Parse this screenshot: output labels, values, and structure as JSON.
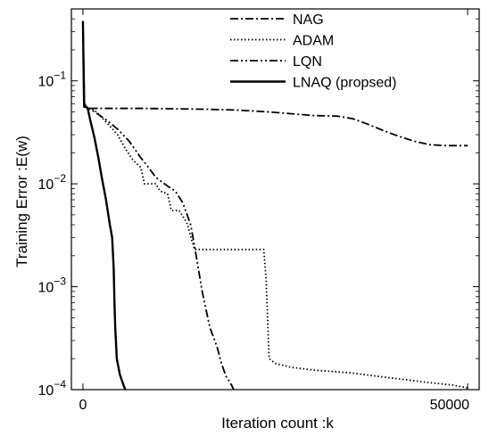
{
  "chart_data": {
    "type": "line",
    "title": "",
    "xlabel": "Iteration count :k",
    "ylabel": "Training Error :E(w)",
    "xlim": [
      -1500,
      51500
    ],
    "ylim": [
      0.0001,
      0.5
    ],
    "y_scale": "log",
    "x_ticks": [
      0,
      50000
    ],
    "x_tick_labels": [
      "0",
      "50000"
    ],
    "y_ticks": [
      0.1,
      0.01,
      0.001,
      0.0001
    ],
    "grid": false,
    "legend_position": "top-right",
    "series": [
      {
        "name": "NAG",
        "dash": "dash-dot",
        "points": [
          [
            0,
            0.38
          ],
          [
            200,
            0.056
          ],
          [
            1000,
            0.054
          ],
          [
            3000,
            0.054
          ],
          [
            8000,
            0.054
          ],
          [
            12000,
            0.0535
          ],
          [
            16000,
            0.053
          ],
          [
            20000,
            0.052
          ],
          [
            24000,
            0.05
          ],
          [
            27000,
            0.048
          ],
          [
            30000,
            0.046
          ],
          [
            33000,
            0.0455
          ],
          [
            35000,
            0.043
          ],
          [
            37000,
            0.038
          ],
          [
            39000,
            0.033
          ],
          [
            41000,
            0.029
          ],
          [
            43000,
            0.026
          ],
          [
            45000,
            0.024
          ],
          [
            47000,
            0.0235
          ],
          [
            50000,
            0.0235
          ]
        ]
      },
      {
        "name": "ADAM",
        "dash": "dotted",
        "points": [
          [
            0,
            0.38
          ],
          [
            200,
            0.06
          ],
          [
            500,
            0.055
          ],
          [
            1500,
            0.052
          ],
          [
            3000,
            0.04
          ],
          [
            4500,
            0.03
          ],
          [
            5500,
            0.022
          ],
          [
            6500,
            0.017
          ],
          [
            7500,
            0.0145
          ],
          [
            8000,
            0.01
          ],
          [
            9500,
            0.01
          ],
          [
            10000,
            0.0085
          ],
          [
            11000,
            0.008
          ],
          [
            11500,
            0.0055
          ],
          [
            12500,
            0.0055
          ],
          [
            13500,
            0.0042
          ],
          [
            14500,
            0.0023
          ],
          [
            19000,
            0.0023
          ],
          [
            23500,
            0.0023
          ],
          [
            23800,
            0.0012
          ],
          [
            24000,
            0.0005
          ],
          [
            24200,
            0.0002
          ],
          [
            25000,
            0.00018
          ],
          [
            27000,
            0.000165
          ],
          [
            30000,
            0.000155
          ],
          [
            35000,
            0.000145
          ],
          [
            40000,
            0.00013
          ],
          [
            45000,
            0.000117
          ],
          [
            48000,
            0.000111
          ],
          [
            50000,
            0.000104
          ]
        ]
      },
      {
        "name": "LQN",
        "dash": "dash-dot-dot",
        "points": [
          [
            0,
            0.38
          ],
          [
            200,
            0.06
          ],
          [
            500,
            0.055
          ],
          [
            1500,
            0.05
          ],
          [
            3000,
            0.042
          ],
          [
            4500,
            0.034
          ],
          [
            6000,
            0.026
          ],
          [
            7500,
            0.018
          ],
          [
            8500,
            0.0145
          ],
          [
            9500,
            0.0115
          ],
          [
            11000,
            0.0095
          ],
          [
            12000,
            0.0085
          ],
          [
            13000,
            0.0065
          ],
          [
            14000,
            0.004
          ],
          [
            14500,
            0.0025
          ],
          [
            15000,
            0.0015
          ],
          [
            15500,
            0.0009
          ],
          [
            16000,
            0.0006
          ],
          [
            16500,
            0.0004
          ],
          [
            17000,
            0.00032
          ],
          [
            17500,
            0.00025
          ],
          [
            18000,
            0.00018
          ],
          [
            18600,
            0.000135
          ],
          [
            19200,
            0.000115
          ],
          [
            19600,
            0.0001
          ]
        ]
      },
      {
        "name": "LNAQ (propsed)",
        "dash": "solid",
        "points": [
          [
            0,
            0.38
          ],
          [
            150,
            0.056
          ],
          [
            600,
            0.055
          ],
          [
            1000,
            0.04
          ],
          [
            1500,
            0.028
          ],
          [
            2000,
            0.018
          ],
          [
            2500,
            0.011
          ],
          [
            3000,
            0.007
          ],
          [
            3500,
            0.004
          ],
          [
            3800,
            0.003
          ],
          [
            4000,
            0.0015
          ],
          [
            4100,
            0.0007
          ],
          [
            4200,
            0.0004
          ],
          [
            4400,
            0.0002
          ],
          [
            4800,
            0.00014
          ],
          [
            5200,
            0.000115
          ],
          [
            5500,
            0.0001
          ]
        ]
      }
    ]
  }
}
